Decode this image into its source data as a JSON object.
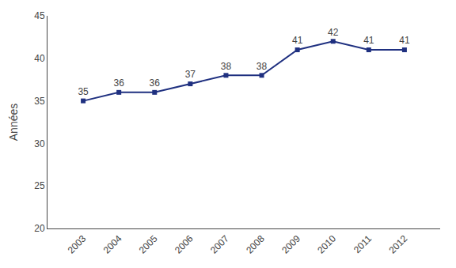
{
  "chart_data": {
    "type": "line",
    "x": [
      2003,
      2004,
      2005,
      2006,
      2007,
      2008,
      2009,
      2010,
      2011,
      2012
    ],
    "values": [
      35,
      36,
      36,
      37,
      38,
      38,
      41,
      42,
      41,
      41
    ],
    "color": "#1F3080",
    "marker": "square",
    "ylabel": "Années",
    "xlim": [
      2002,
      2013
    ],
    "xticks": [
      2003,
      2004,
      2005,
      2006,
      2007,
      2008,
      2009,
      2010,
      2011,
      2012
    ],
    "ylim": [
      20,
      45
    ],
    "yticks": [
      20,
      25,
      30,
      35,
      40,
      45
    ],
    "grid": false,
    "data_labels": true
  }
}
